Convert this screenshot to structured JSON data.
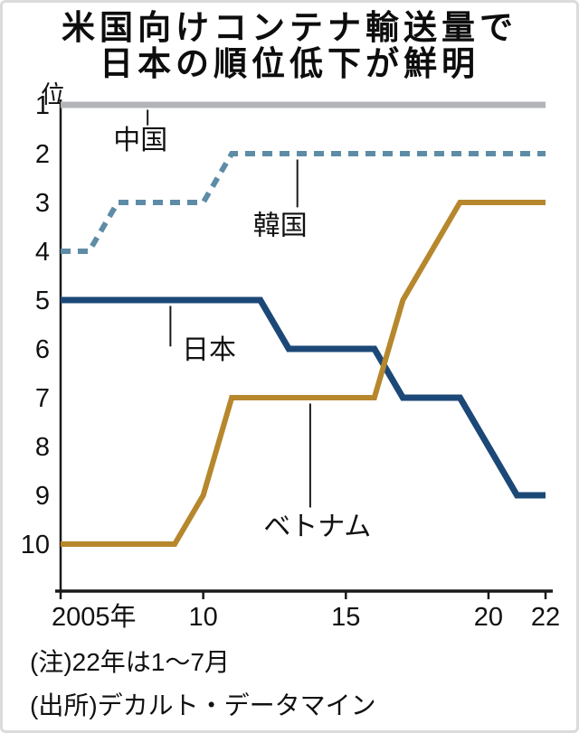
{
  "title": {
    "line1": "米国向けコンテナ輸送量で",
    "line2": "日本の順位低下が鮮明"
  },
  "y_axis_unit": "位",
  "footnotes": {
    "note": "(注)22年は1～7月",
    "source": "(出所)デカルト・データマイン"
  },
  "chart_data": {
    "type": "line",
    "title": "米国向けコンテナ輸送量で日本の順位低下が鮮明",
    "ylabel": "位",
    "y_axis_inverted": true,
    "ylim": [
      1,
      10
    ],
    "grid": false,
    "legend_position": "inline-labels",
    "x": [
      2005,
      2006,
      2007,
      2008,
      2009,
      2010,
      2011,
      2012,
      2013,
      2014,
      2015,
      2016,
      2017,
      2018,
      2019,
      2020,
      2021,
      2022
    ],
    "x_ticks": [
      {
        "year": 2005,
        "label": "2005年",
        "anchor": "start"
      },
      {
        "year": 2010,
        "label": "10",
        "anchor": "middle"
      },
      {
        "year": 2015,
        "label": "15",
        "anchor": "middle"
      },
      {
        "year": 2020,
        "label": "20",
        "anchor": "middle"
      },
      {
        "year": 2022,
        "label": "22",
        "anchor": "middle"
      }
    ],
    "y_ticks": [
      1,
      2,
      3,
      4,
      5,
      6,
      7,
      8,
      9,
      10
    ],
    "series": [
      {
        "id": "china",
        "name": "中国",
        "color": "#b3b4b8",
        "dash": "none",
        "width": 7,
        "values": [
          1,
          1,
          1,
          1,
          1,
          1,
          1,
          1,
          1,
          1,
          1,
          1,
          1,
          1,
          1,
          1,
          1,
          1
        ]
      },
      {
        "id": "korea",
        "name": "韓国",
        "color": "#5e8ca6",
        "dash": "11 8",
        "width": 6,
        "values": [
          4,
          4,
          3,
          3,
          3,
          3,
          2,
          2,
          2,
          2,
          2,
          2,
          2,
          2,
          2,
          2,
          2,
          2
        ]
      },
      {
        "id": "japan",
        "name": "日本",
        "color": "#1c4878",
        "dash": "none",
        "width": 7,
        "values": [
          5,
          5,
          5,
          5,
          5,
          5,
          5,
          5,
          6,
          6,
          6,
          6,
          7,
          7,
          7,
          8,
          9,
          9
        ]
      },
      {
        "id": "vietnam",
        "name": "ベトナム",
        "color": "#b6872c",
        "dash": "none",
        "width": 6,
        "values": [
          10,
          10,
          10,
          10,
          10,
          9,
          7,
          7,
          7,
          7,
          7,
          7,
          5,
          4,
          3,
          3,
          3,
          3
        ]
      }
    ],
    "series_labels_layout": [
      {
        "series": "china",
        "leader": {
          "year": 2008.05,
          "rank_from": 1.1,
          "rank_to": 1.42
        },
        "text": {
          "year": 2007.8,
          "rank": 1.7,
          "anchor": "middle"
        }
      },
      {
        "series": "korea",
        "leader": {
          "year": 2013.3,
          "rank_from": 2.12,
          "rank_to": 3.1
        },
        "text": {
          "year": 2012.7,
          "rank": 3.45,
          "anchor": "middle"
        }
      },
      {
        "series": "japan",
        "leader": {
          "year": 2008.85,
          "rank_from": 5.12,
          "rank_to": 5.95
        },
        "text": {
          "year": 2009.25,
          "rank": 6.0,
          "anchor": "start"
        }
      },
      {
        "series": "vietnam",
        "leader": {
          "year": 2013.75,
          "rank_from": 7.12,
          "rank_to": 9.25
        },
        "text": {
          "year": 2014.0,
          "rank": 9.62,
          "anchor": "middle"
        }
      }
    ]
  }
}
